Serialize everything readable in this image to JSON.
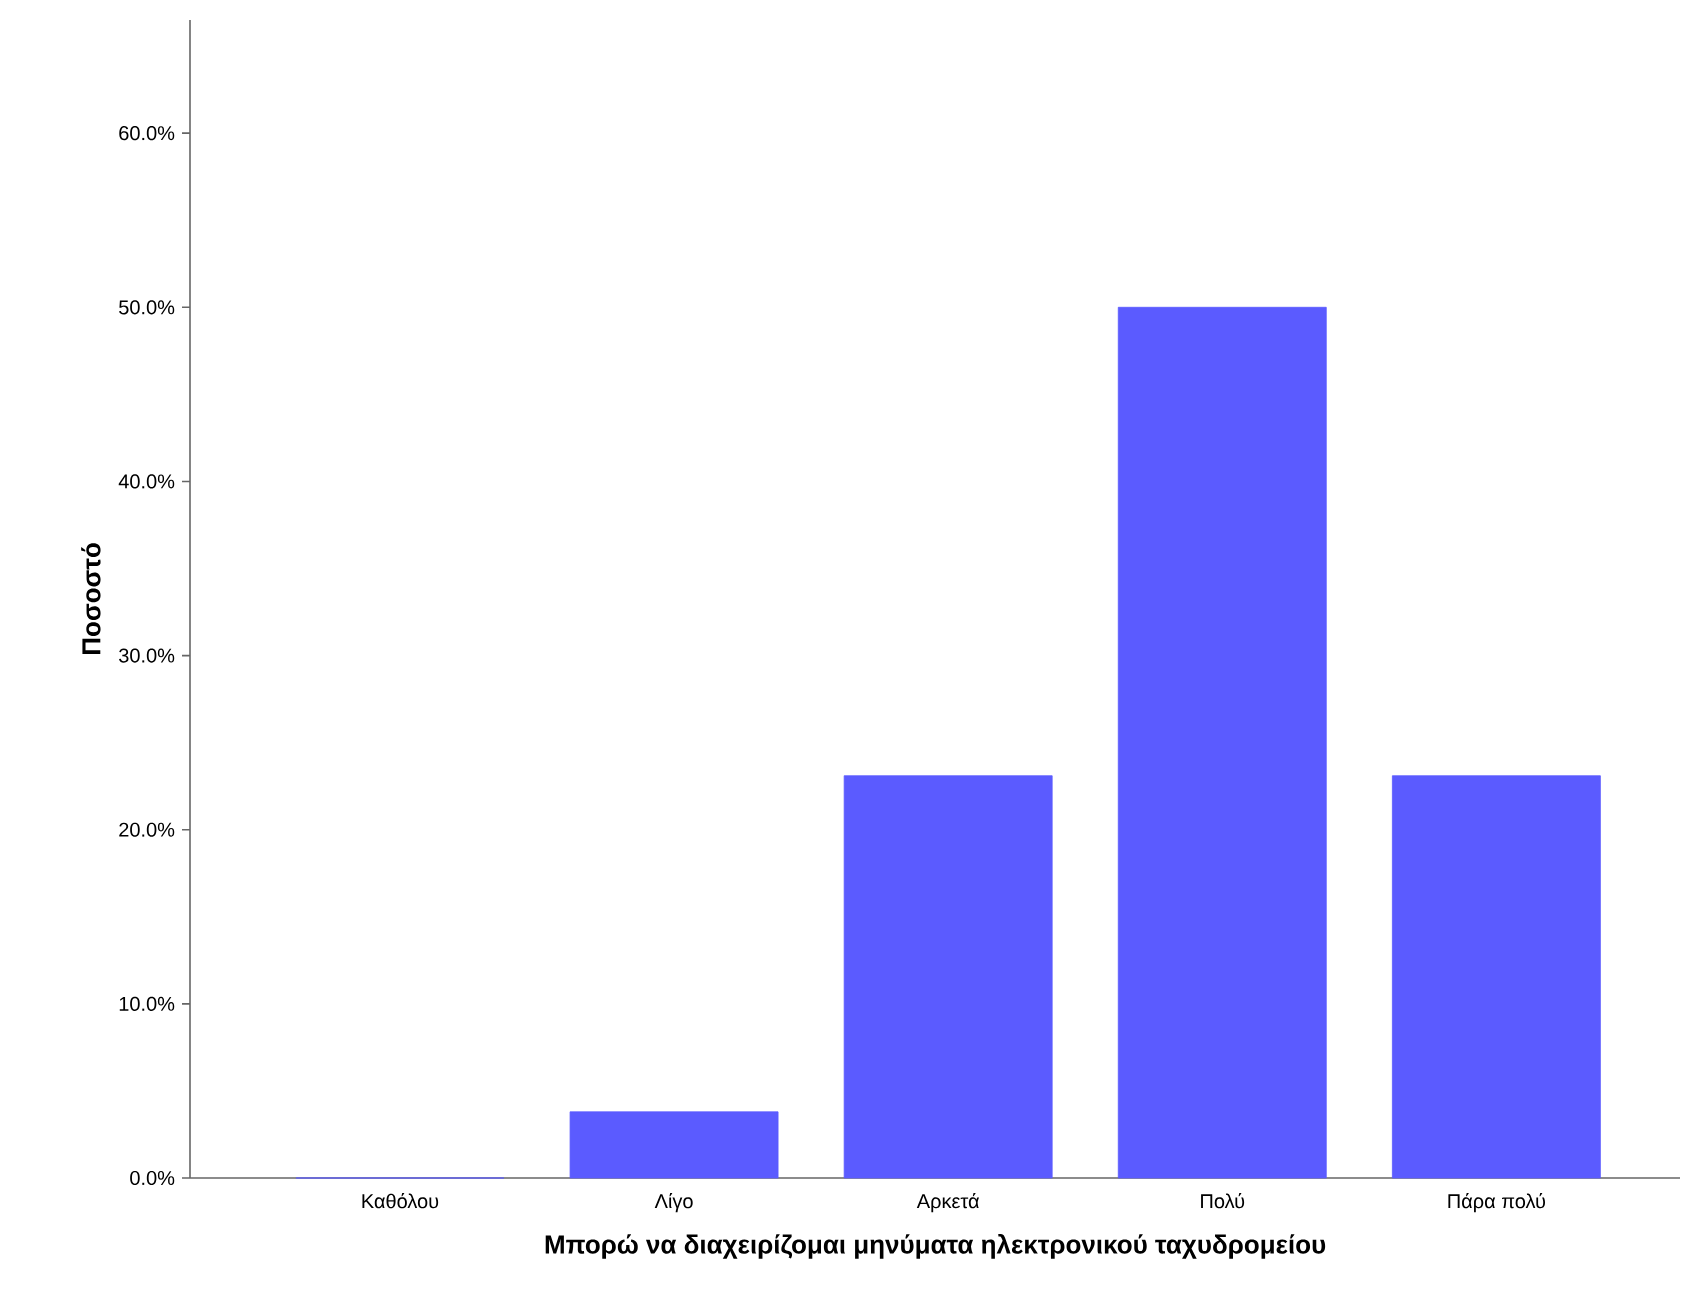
{
  "chart_data": {
    "type": "bar",
    "xlabel": "Μπορώ να διαχειρίζομαι μηνύματα ηλεκτρονικού ταχυδρομείου",
    "ylabel": "Ποσοστό",
    "categories": [
      "Καθόλου",
      "Λίγο",
      "Αρκετά",
      "Πολύ",
      "Πάρα πολύ"
    ],
    "values": [
      0,
      3.8,
      23.1,
      50.0,
      23.1
    ],
    "color": "#5b5bff",
    "ylim": [
      0,
      66.5
    ],
    "yticks": [
      {
        "value": 0,
        "label": "0.0%"
      },
      {
        "value": 10,
        "label": "10.0%"
      },
      {
        "value": 20,
        "label": "20.0%"
      },
      {
        "value": 30,
        "label": "30.0%"
      },
      {
        "value": 40,
        "label": "40.0%"
      },
      {
        "value": 50,
        "label": "50.0%"
      },
      {
        "value": 60,
        "label": "60.0%"
      }
    ],
    "grid": false
  }
}
